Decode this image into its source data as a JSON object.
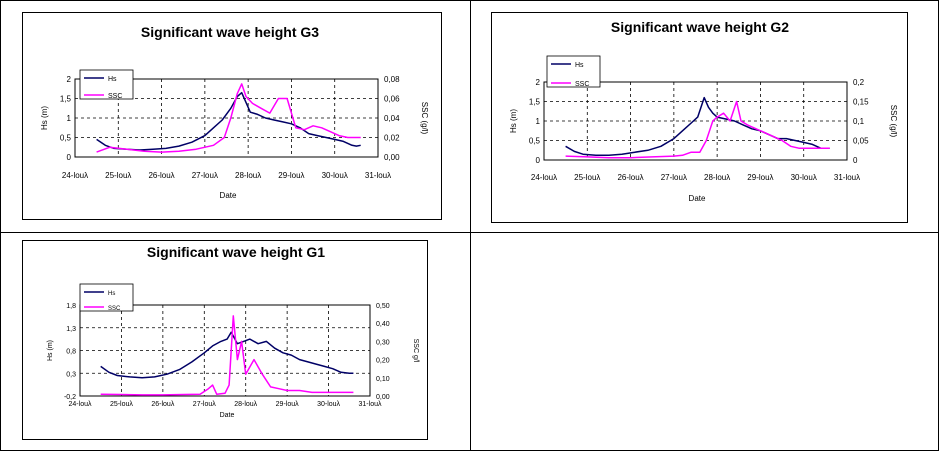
{
  "colors": {
    "hs": "#000066",
    "ssc": "#ff00ff",
    "grid": "#000000"
  },
  "chart_data": [
    {
      "type": "line",
      "title": "Significant wave height G3",
      "xlabel": "Date",
      "ylabel": "Hs (m)",
      "y2label": "SSC (g/l)",
      "x_ticks": [
        "24-louλ",
        "25-louλ",
        "26-louλ",
        "27-louλ",
        "28-louλ",
        "29-louλ",
        "30-louλ",
        "31-louλ"
      ],
      "y_ticks": [
        "0",
        "0,5",
        "1",
        "1,5",
        "2"
      ],
      "y2_ticks": [
        "0,00",
        "0,02",
        "0,04",
        "0,06",
        "0,08"
      ],
      "ylim": [
        0,
        2
      ],
      "y2lim": [
        0,
        0.08
      ],
      "xlim": [
        0,
        7
      ],
      "grid": true,
      "legend": "top-left",
      "series": [
        {
          "name": "Hs",
          "axis": "left",
          "x": [
            0.5,
            0.7,
            0.9,
            1.2,
            1.5,
            1.8,
            2.1,
            2.4,
            2.7,
            3.0,
            3.2,
            3.4,
            3.6,
            3.75,
            3.85,
            3.95,
            4.05,
            4.2,
            4.4,
            4.6,
            4.8,
            5.0,
            5.2,
            5.4,
            5.6,
            5.8,
            6.0,
            6.2,
            6.4,
            6.5,
            6.6
          ],
          "y": [
            0.45,
            0.3,
            0.22,
            0.2,
            0.18,
            0.2,
            0.22,
            0.28,
            0.38,
            0.55,
            0.75,
            0.95,
            1.25,
            1.55,
            1.65,
            1.4,
            1.15,
            1.1,
            1.0,
            0.95,
            0.9,
            0.85,
            0.75,
            0.6,
            0.55,
            0.5,
            0.45,
            0.4,
            0.3,
            0.28,
            0.3
          ]
        },
        {
          "name": "SSC",
          "axis": "right",
          "x": [
            0.5,
            0.8,
            1.2,
            1.6,
            2.0,
            2.4,
            2.8,
            3.2,
            3.45,
            3.6,
            3.75,
            3.85,
            3.95,
            4.1,
            4.3,
            4.5,
            4.7,
            4.9,
            5.1,
            5.3,
            5.5,
            5.7,
            5.9,
            6.1,
            6.3,
            6.5,
            6.6
          ],
          "y": [
            0.005,
            0.01,
            0.008,
            0.006,
            0.005,
            0.006,
            0.008,
            0.012,
            0.02,
            0.04,
            0.065,
            0.075,
            0.062,
            0.055,
            0.05,
            0.045,
            0.06,
            0.06,
            0.03,
            0.028,
            0.032,
            0.03,
            0.026,
            0.022,
            0.02,
            0.02,
            0.02
          ]
        }
      ]
    },
    {
      "type": "line",
      "title": "Significant wave height G2",
      "xlabel": "Date",
      "ylabel": "Hs (m)",
      "y2label": "SSC (g/l)",
      "x_ticks": [
        "24-louλ",
        "25-louλ",
        "26-louλ",
        "27-louλ",
        "28-louλ",
        "29-louλ",
        "30-louλ",
        "31-louλ"
      ],
      "y_ticks": [
        "0",
        "0,5",
        "1",
        "1,5",
        "2"
      ],
      "y2_ticks": [
        "0",
        "0,05",
        "0,1",
        "0,15",
        "0,2"
      ],
      "ylim": [
        0,
        2
      ],
      "y2lim": [
        0,
        0.2
      ],
      "xlim": [
        0,
        7
      ],
      "grid": true,
      "legend": "top-left",
      "series": [
        {
          "name": "Hs",
          "axis": "left",
          "x": [
            0.5,
            0.7,
            0.9,
            1.2,
            1.5,
            1.8,
            2.1,
            2.4,
            2.7,
            3.0,
            3.2,
            3.4,
            3.55,
            3.7,
            3.8,
            3.9,
            4.0,
            4.2,
            4.4,
            4.6,
            4.8,
            5.0,
            5.2,
            5.4,
            5.6,
            5.8,
            6.0,
            6.2,
            6.4,
            6.6
          ],
          "y": [
            0.35,
            0.22,
            0.15,
            0.12,
            0.12,
            0.15,
            0.2,
            0.25,
            0.35,
            0.55,
            0.75,
            0.95,
            1.1,
            1.6,
            1.35,
            1.2,
            1.1,
            1.05,
            1.0,
            0.9,
            0.8,
            0.75,
            0.65,
            0.55,
            0.55,
            0.5,
            0.45,
            0.4,
            0.3,
            0.3
          ]
        },
        {
          "name": "SSC",
          "axis": "right",
          "x": [
            0.5,
            1.0,
            1.5,
            2.0,
            2.5,
            3.0,
            3.2,
            3.4,
            3.6,
            3.75,
            3.9,
            4.0,
            4.15,
            4.3,
            4.45,
            4.55,
            4.7,
            4.9,
            5.1,
            5.3,
            5.5,
            5.7,
            5.9,
            6.1,
            6.3,
            6.5,
            6.6
          ],
          "y": [
            0.01,
            0.008,
            0.006,
            0.006,
            0.008,
            0.01,
            0.012,
            0.02,
            0.02,
            0.05,
            0.1,
            0.11,
            0.12,
            0.1,
            0.15,
            0.1,
            0.09,
            0.08,
            0.07,
            0.06,
            0.05,
            0.035,
            0.03,
            0.03,
            0.03,
            0.03,
            0.03
          ]
        }
      ]
    },
    {
      "type": "line",
      "title": "Significant wave height G1",
      "xlabel": "Date",
      "ylabel": "Hs (m)",
      "y2label": "SSC g/l",
      "x_ticks": [
        "24-louλ",
        "25-louλ",
        "26-louλ",
        "27-louλ",
        "28-louλ",
        "29-louλ",
        "30-louλ",
        "31-louλ"
      ],
      "y_ticks": [
        "-0,2",
        "0,3",
        "0,8",
        "1,3",
        "1,8"
      ],
      "y2_ticks": [
        "0,00",
        "0,10",
        "0,20",
        "0,30",
        "0,40",
        "0,50"
      ],
      "ylim": [
        -0.2,
        1.8
      ],
      "y2lim": [
        0,
        0.5
      ],
      "xlim": [
        0,
        7
      ],
      "grid": true,
      "legend": "top-left",
      "series": [
        {
          "name": "Hs",
          "axis": "left",
          "x": [
            0.5,
            0.7,
            0.9,
            1.2,
            1.5,
            1.8,
            2.1,
            2.4,
            2.7,
            3.0,
            3.2,
            3.4,
            3.55,
            3.65,
            3.8,
            3.95,
            4.1,
            4.3,
            4.5,
            4.7,
            4.9,
            5.1,
            5.3,
            5.5,
            5.7,
            5.9,
            6.1,
            6.3,
            6.5,
            6.6
          ],
          "y": [
            0.45,
            0.32,
            0.25,
            0.22,
            0.2,
            0.22,
            0.28,
            0.38,
            0.55,
            0.75,
            0.9,
            1.0,
            1.05,
            1.2,
            0.95,
            1.0,
            1.05,
            0.95,
            1.0,
            0.85,
            0.75,
            0.7,
            0.6,
            0.55,
            0.5,
            0.45,
            0.4,
            0.32,
            0.3,
            0.3
          ]
        },
        {
          "name": "SSC",
          "axis": "right",
          "x": [
            0.5,
            1.0,
            1.5,
            2.0,
            2.5,
            2.9,
            3.1,
            3.2,
            3.3,
            3.5,
            3.6,
            3.7,
            3.8,
            3.9,
            4.0,
            4.2,
            4.4,
            4.6,
            4.8,
            5.0,
            5.3,
            5.6,
            5.9,
            6.2,
            6.5,
            6.6
          ],
          "y": [
            0.01,
            0.008,
            0.006,
            0.006,
            0.008,
            0.01,
            0.04,
            0.06,
            0.01,
            0.015,
            0.06,
            0.44,
            0.2,
            0.3,
            0.12,
            0.2,
            0.12,
            0.05,
            0.04,
            0.03,
            0.03,
            0.02,
            0.02,
            0.02,
            0.02,
            0.02
          ]
        }
      ]
    }
  ]
}
